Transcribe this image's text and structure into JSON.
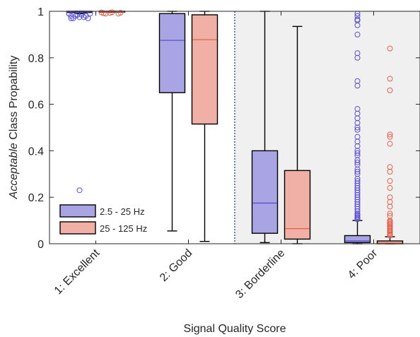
{
  "chart_data": {
    "type": "box",
    "title": "",
    "ylabel_italic": "Acceptable",
    "ylabel_rest": " Class Propability",
    "xlabel": "Signal Quality Score",
    "ylim": [
      0,
      1
    ],
    "yticks": [
      0,
      0.2,
      0.4,
      0.6,
      0.8,
      1
    ],
    "ytick_labels": [
      "0",
      "0.2",
      "0.4",
      "0.6",
      "0.8",
      "1"
    ],
    "categories": [
      "1: Excellent",
      "2: Good",
      "3: Borderline",
      "4: Poor"
    ],
    "divider_after_category": "2: Good",
    "shaded_categories": [
      "3: Borderline",
      "4: Poor"
    ],
    "shade_color": "#f0f0f0",
    "legend_position": "bottom-left",
    "series": [
      {
        "name": "2.5 - 25 Hz",
        "fill": "#a9a4e4",
        "median_color": "#5a4fcf",
        "outlier_color": "#5a4fcf",
        "boxes": [
          {
            "q1": 0.995,
            "median": 0.998,
            "q3": 1.0,
            "whisker_low": 0.99,
            "whisker_high": 1.0,
            "outliers": [
              0.99,
              0.985,
              0.98,
              0.98,
              0.975,
              0.97,
              0.97,
              0.985,
              0.99,
              0.98,
              0.975,
              0.99,
              0.985,
              0.98,
              0.97,
              0.23
            ]
          },
          {
            "q1": 0.65,
            "median": 0.875,
            "q3": 0.99,
            "whisker_low": 0.055,
            "whisker_high": 1.0,
            "outliers": []
          },
          {
            "q1": 0.045,
            "median": 0.175,
            "q3": 0.4,
            "whisker_low": 0.005,
            "whisker_high": 1.0,
            "outliers": []
          },
          {
            "q1": 0.005,
            "median": 0.012,
            "q3": 0.035,
            "whisker_low": 0.0,
            "whisker_high": 0.1,
            "outliers": [
              0.99,
              0.98,
              0.965,
              0.96,
              0.94,
              0.9,
              0.82,
              0.8,
              0.7,
              0.68,
              0.58,
              0.56,
              0.54,
              0.52,
              0.5,
              0.49,
              0.46,
              0.44,
              0.42,
              0.4,
              0.39,
              0.38,
              0.36,
              0.35,
              0.34,
              0.32,
              0.31,
              0.3,
              0.28,
              0.27,
              0.26,
              0.25,
              0.24,
              0.23,
              0.22,
              0.21,
              0.2,
              0.19,
              0.18,
              0.17,
              0.16,
              0.15,
              0.14,
              0.13,
              0.125,
              0.12,
              0.115,
              0.11,
              0.105
            ]
          }
        ]
      },
      {
        "name": "25 - 125 Hz",
        "fill": "#f0b0a5",
        "median_color": "#e0634f",
        "outlier_color": "#e0634f",
        "boxes": [
          {
            "q1": 0.998,
            "median": 0.999,
            "q3": 1.0,
            "whisker_low": 0.997,
            "whisker_high": 1.0,
            "outliers": [
              0.995,
              0.993,
              0.99,
              0.992,
              0.996,
              0.994,
              0.99
            ]
          },
          {
            "q1": 0.515,
            "median": 0.878,
            "q3": 0.985,
            "whisker_low": 0.01,
            "whisker_high": 1.0,
            "outliers": []
          },
          {
            "q1": 0.02,
            "median": 0.065,
            "q3": 0.315,
            "whisker_low": 0.0,
            "whisker_high": 0.935,
            "outliers": []
          },
          {
            "q1": 0.0,
            "median": 0.003,
            "q3": 0.012,
            "whisker_low": 0.0,
            "whisker_high": 0.03,
            "outliers": [
              0.84,
              0.71,
              0.66,
              0.47,
              0.46,
              0.43,
              0.33,
              0.31,
              0.27,
              0.24,
              0.2,
              0.18,
              0.16,
              0.13,
              0.12,
              0.1,
              0.095,
              0.09,
              0.085,
              0.08,
              0.075,
              0.07,
              0.065,
              0.06,
              0.055,
              0.05,
              0.045,
              0.04,
              0.038,
              0.035
            ]
          }
        ]
      }
    ]
  }
}
